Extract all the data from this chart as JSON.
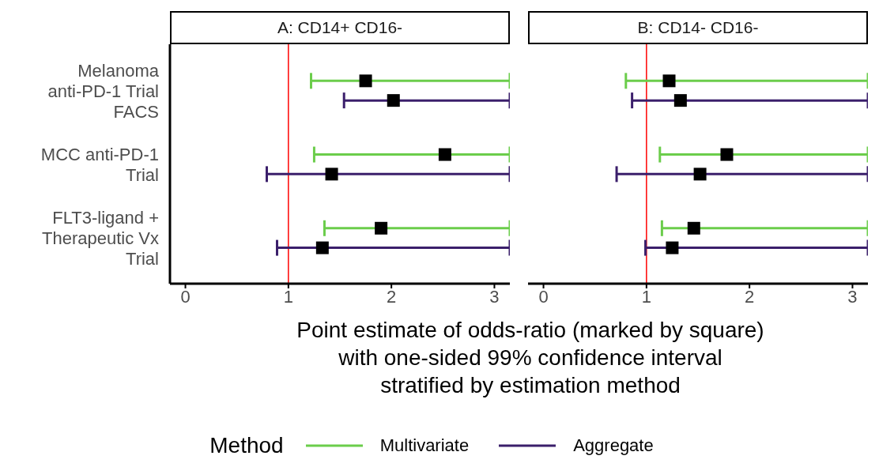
{
  "chart_data": [
    {
      "type": "scatter",
      "orientation": "horizontal",
      "title": "A: CD14+ CD16-",
      "xlabel": "Point estimate of odds-ratio (marked by square)\nwith one-sided 99% confidence interval\nstratified by estimation method",
      "legend_title": "Method",
      "legend": "bottom",
      "marker": "square",
      "grid": false,
      "categories": [
        "Melanoma\nanti-PD-1 Trial\nFACS",
        "MCC anti-PD-1\nTrial",
        "FLT3-ligand +\nTherapeutic Vx\nTrial"
      ],
      "xlim": [
        -0.15,
        3.15
      ],
      "xticks": [
        0,
        1,
        2,
        3
      ],
      "ref_lines": [
        {
          "axis": "x",
          "value": 1,
          "color": "#ff0000"
        }
      ],
      "series": [
        {
          "name": "Multivariate",
          "color": "#6bcd4b",
          "colors": [
            "#000000",
            "#000000",
            "#000000"
          ],
          "values": [
            1.75,
            2.52,
            1.9
          ],
          "errors": [
            [
              1.22,
              3.15
            ],
            [
              1.25,
              3.15
            ],
            [
              1.35,
              3.15
            ]
          ]
        },
        {
          "name": "Aggregate",
          "color": "#3b1f6b",
          "colors": [
            "#000000",
            "#000000",
            "#000000"
          ],
          "values": [
            2.02,
            1.42,
            1.33
          ],
          "errors": [
            [
              1.54,
              3.15
            ],
            [
              0.79,
              3.15
            ],
            [
              0.89,
              3.15
            ]
          ]
        }
      ]
    },
    {
      "type": "scatter",
      "orientation": "horizontal",
      "title": "B: CD14- CD16-",
      "marker": "square",
      "tick_labels": "x",
      "grid": false,
      "categories": [
        null,
        null,
        null
      ],
      "xlim": [
        -0.15,
        3.15
      ],
      "xticks": [
        0,
        1,
        2,
        3
      ],
      "ref_lines": [
        {
          "axis": "x",
          "value": 1,
          "color": "#ff0000"
        }
      ],
      "series": [
        {
          "color": "#6bcd4b",
          "colors": [
            "#000000",
            "#000000",
            "#000000"
          ],
          "values": [
            1.22,
            1.78,
            1.46
          ],
          "errors": [
            [
              0.8,
              3.15
            ],
            [
              1.13,
              3.15
            ],
            [
              1.15,
              3.15
            ]
          ]
        },
        {
          "color": "#3b1f6b",
          "colors": [
            "#000000",
            "#000000",
            "#000000"
          ],
          "values": [
            1.33,
            1.52,
            1.25
          ],
          "errors": [
            [
              0.86,
              3.15
            ],
            [
              0.71,
              3.15
            ],
            [
              0.99,
              3.15
            ]
          ]
        }
      ]
    }
  ]
}
